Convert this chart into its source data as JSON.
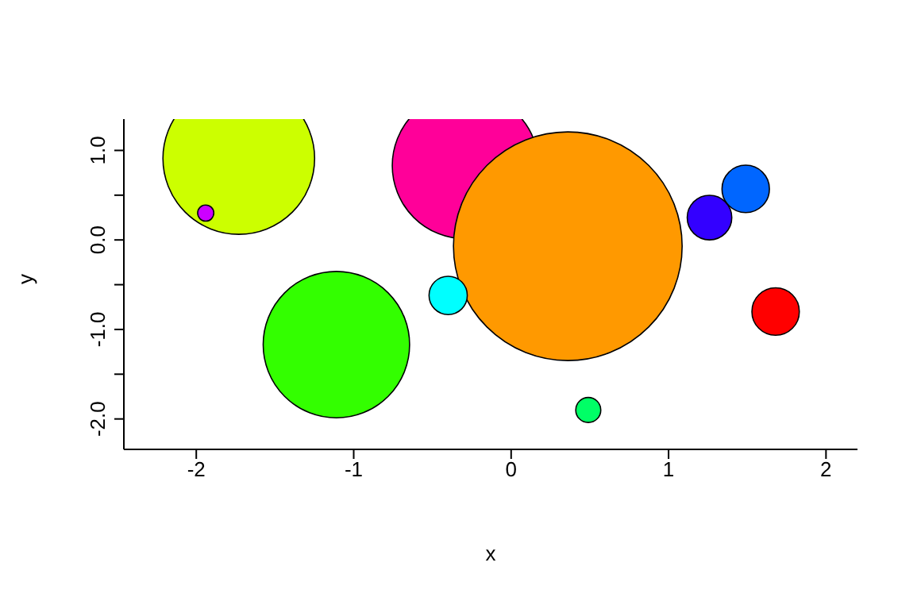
{
  "chart_data": {
    "type": "bubble",
    "xlabel": "x",
    "ylabel": "y",
    "x": [
      -1.73,
      -1.94,
      -0.29,
      0.36,
      -1.11,
      -0.4,
      0.49,
      1.26,
      1.49,
      1.68
    ],
    "values": [
      0.91,
      0.3,
      0.83,
      -0.07,
      -1.17,
      -0.62,
      -1.9,
      0.25,
      0.57,
      -0.8
    ],
    "sizes": [
      0.44,
      0.005,
      0.41,
      1,
      0.41,
      0.028,
      0.012,
      0.038,
      0.043,
      0.043
    ],
    "colors": [
      "#ccff00",
      "#cc00ff",
      "#ff0099",
      "#ff9900",
      "#33ff00",
      "#00ffff",
      "#00ff66",
      "#3300ff",
      "#0066ff",
      "#ff0000"
    ],
    "xlim": [
      -2.46,
      2.2
    ],
    "xticks": [
      -2,
      -1,
      0,
      1,
      2
    ],
    "ylim": [
      -2.34,
      1.35
    ],
    "yticks": [
      {
        "value": -2,
        "label": "-2.0"
      },
      {
        "value": -1.5,
        "label": null
      },
      {
        "value": -1,
        "label": "-1.0"
      },
      {
        "value": -0.5,
        "label": null
      },
      {
        "value": 0,
        "label": "0.0"
      },
      {
        "value": 0.5,
        "label": null
      },
      {
        "value": 1,
        "label": "1.0"
      }
    ]
  }
}
